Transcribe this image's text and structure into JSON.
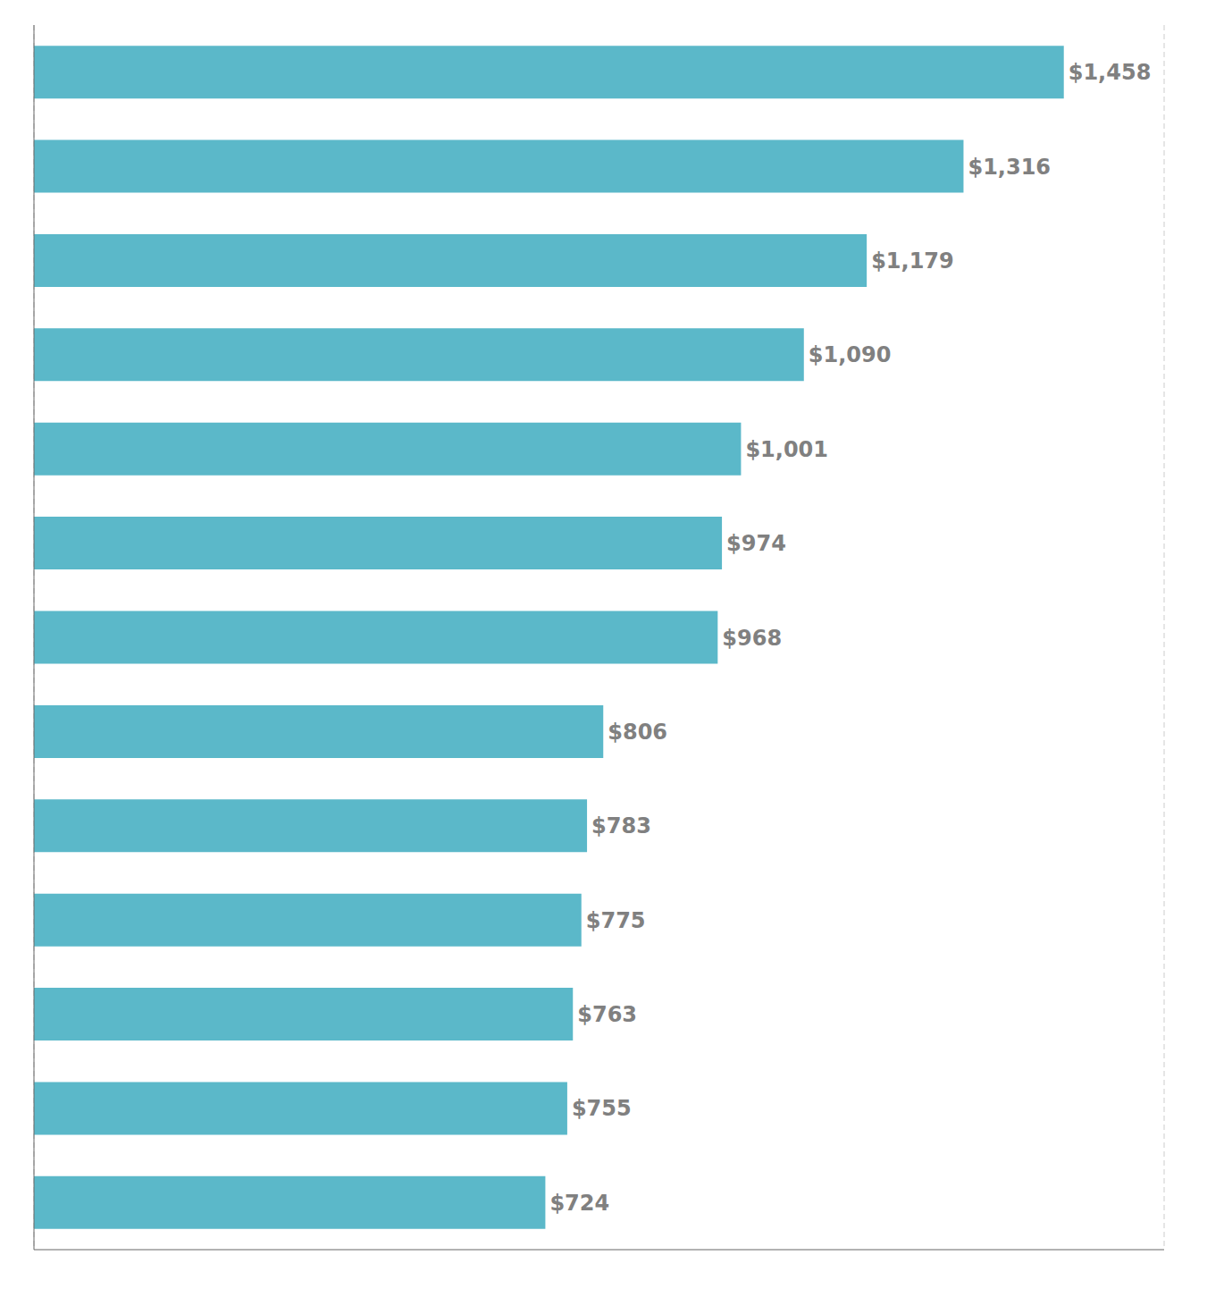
{
  "chart_data": {
    "type": "bar",
    "orientation": "horizontal",
    "categories": [
      null,
      null,
      null,
      null,
      null,
      null,
      null,
      null,
      null,
      null,
      null,
      null,
      null
    ],
    "values": [
      1458,
      1316,
      1179,
      1090,
      1001,
      974,
      968,
      806,
      783,
      775,
      763,
      755,
      724
    ],
    "value_labels": [
      "$1,458",
      "$1,316",
      "$1,179",
      "$1,090",
      "$1,001",
      "$974",
      "$968",
      "$806",
      "$783",
      "$775",
      "$763",
      "$755",
      "$724"
    ],
    "data_labels": true,
    "color": "#5bb8c9",
    "xlim": [
      0,
      1600
    ],
    "xticks": [
      430,
      690,
      1010,
      1340
    ],
    "grid": true,
    "tick_labels": false
  }
}
